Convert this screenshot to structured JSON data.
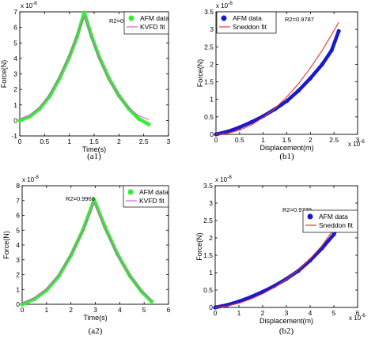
{
  "colors": {
    "afm_green": "#33ee33",
    "afm_blue": "#1a1acc",
    "kvfd_fit": "#dd55dd",
    "sneddon_fit": "#ee3333"
  },
  "chart_data": [
    {
      "type": "line",
      "caption": "(a1)",
      "xlabel": "Time(s)",
      "ylabel": "Force(N)",
      "y_exponent_label": "x 10",
      "y_exponent": "-8",
      "xlim": [
        0,
        3
      ],
      "ylim": [
        -1,
        7
      ],
      "xticks": [
        "0",
        "0.5",
        "1",
        "1.5",
        "2",
        "2.5",
        "3"
      ],
      "yticks": [
        "-1",
        "0",
        "1",
        "2",
        "3",
        "4",
        "5",
        "6",
        "7"
      ],
      "annotation": "R2=0.9918",
      "legend_position": "top-right",
      "series": [
        {
          "name": "AFM data",
          "style": "thick-marker",
          "color": "#33ee33",
          "points": [
            [
              0,
              0
            ],
            [
              0.2,
              0.25
            ],
            [
              0.4,
              0.75
            ],
            [
              0.6,
              1.55
            ],
            [
              0.8,
              2.7
            ],
            [
              1.0,
              4.1
            ],
            [
              1.15,
              5.35
            ],
            [
              1.3,
              6.95
            ],
            [
              1.45,
              5.4
            ],
            [
              1.6,
              4.1
            ],
            [
              1.8,
              2.7
            ],
            [
              2.0,
              1.6
            ],
            [
              2.2,
              0.75
            ],
            [
              2.4,
              0.1
            ],
            [
              2.6,
              -0.25
            ]
          ]
        },
        {
          "name": "KVFD fit",
          "style": "line",
          "color": "#dd55dd",
          "points": [
            [
              0,
              0.1
            ],
            [
              0.2,
              0.35
            ],
            [
              0.4,
              0.85
            ],
            [
              0.6,
              1.65
            ],
            [
              0.8,
              2.8
            ],
            [
              1.0,
              4.2
            ],
            [
              1.15,
              5.45
            ],
            [
              1.3,
              6.7
            ],
            [
              1.45,
              5.3
            ],
            [
              1.6,
              4.0
            ],
            [
              1.8,
              2.6
            ],
            [
              2.0,
              1.55
            ],
            [
              2.2,
              0.8
            ],
            [
              2.4,
              0.3
            ],
            [
              2.6,
              0.05
            ]
          ]
        }
      ]
    },
    {
      "type": "line",
      "caption": "(b1)",
      "xlabel": "Displacement(m)",
      "ylabel": "Force(N)",
      "y_exponent_label": "x 10",
      "y_exponent": "-8",
      "x_exponent_label": "x 10",
      "x_exponent": "-6",
      "xlim": [
        0,
        3
      ],
      "ylim": [
        0,
        3.5
      ],
      "xticks": [
        "0",
        "0.5",
        "1",
        "1.5",
        "2",
        "2.5",
        "3"
      ],
      "yticks": [
        "0",
        "0.5",
        "1",
        "1.5",
        "2",
        "2.5",
        "3",
        "3.5"
      ],
      "annotation": "R2=0.9787",
      "legend_position": "top-left",
      "series": [
        {
          "name": "AFM data",
          "style": "thick-marker",
          "color": "#1a1acc",
          "points": [
            [
              0,
              0
            ],
            [
              0.25,
              0.08
            ],
            [
              0.5,
              0.2
            ],
            [
              0.75,
              0.35
            ],
            [
              1.0,
              0.52
            ],
            [
              1.25,
              0.72
            ],
            [
              1.5,
              0.95
            ],
            [
              1.75,
              1.25
            ],
            [
              2.0,
              1.6
            ],
            [
              2.25,
              2.0
            ],
            [
              2.45,
              2.4
            ],
            [
              2.6,
              2.95
            ]
          ]
        },
        {
          "name": "Sneddon fit",
          "style": "line",
          "color": "#ee3333",
          "points": [
            [
              0,
              0
            ],
            [
              0.25,
              0.03
            ],
            [
              0.5,
              0.12
            ],
            [
              0.75,
              0.27
            ],
            [
              1.0,
              0.48
            ],
            [
              1.25,
              0.74
            ],
            [
              1.5,
              1.07
            ],
            [
              1.75,
              1.45
            ],
            [
              2.0,
              1.9
            ],
            [
              2.25,
              2.4
            ],
            [
              2.45,
              2.85
            ],
            [
              2.6,
              3.2
            ]
          ]
        }
      ]
    },
    {
      "type": "line",
      "caption": "(a2)",
      "xlabel": "Time(s)",
      "ylabel": "Force(N)",
      "y_exponent_label": "x 10",
      "y_exponent": "-8",
      "xlim": [
        0,
        6
      ],
      "ylim": [
        0,
        8
      ],
      "xticks": [
        "0",
        "1",
        "2",
        "3",
        "4",
        "5",
        "6"
      ],
      "yticks": [
        "0",
        "1",
        "2",
        "3",
        "4",
        "5",
        "6",
        "7",
        "8"
      ],
      "annotation": "R2=0.9968",
      "legend_position": "top-right",
      "series": [
        {
          "name": "AFM data",
          "style": "thick-marker",
          "color": "#33ee33",
          "points": [
            [
              0,
              0
            ],
            [
              0.5,
              0.35
            ],
            [
              1.0,
              0.95
            ],
            [
              1.5,
              1.9
            ],
            [
              2.0,
              3.3
            ],
            [
              2.5,
              5.05
            ],
            [
              2.95,
              7.05
            ],
            [
              3.4,
              5.2
            ],
            [
              3.9,
              3.4
            ],
            [
              4.4,
              1.95
            ],
            [
              4.9,
              0.85
            ],
            [
              5.3,
              0.2
            ]
          ]
        },
        {
          "name": "KVFD fit",
          "style": "line",
          "color": "#dd55dd",
          "points": [
            [
              0,
              0.1
            ],
            [
              0.5,
              0.45
            ],
            [
              1.0,
              1.05
            ],
            [
              1.5,
              2.0
            ],
            [
              2.0,
              3.35
            ],
            [
              2.5,
              5.0
            ],
            [
              2.95,
              6.85
            ],
            [
              3.4,
              5.1
            ],
            [
              3.9,
              3.35
            ],
            [
              4.4,
              1.95
            ],
            [
              4.9,
              0.9
            ],
            [
              5.3,
              0.3
            ]
          ]
        }
      ]
    },
    {
      "type": "line",
      "caption": "(b2)",
      "xlabel": "Displacement(m)",
      "ylabel": "Force(N)",
      "y_exponent_label": "x 10",
      "y_exponent": "-8",
      "x_exponent_label": "x 10",
      "x_exponent": "-6",
      "xlim": [
        0,
        6
      ],
      "ylim": [
        0,
        3.5
      ],
      "xticks": [
        "0",
        "1",
        "2",
        "3",
        "4",
        "5",
        "6"
      ],
      "yticks": [
        "0",
        "0.5",
        "1",
        "1.5",
        "2",
        "2.5",
        "3",
        "3.5"
      ],
      "annotation": "R2=0.9739",
      "legend_position": "top-right",
      "series": [
        {
          "name": "AFM data",
          "style": "thick-marker",
          "color": "#1a1acc",
          "points": [
            [
              0,
              0
            ],
            [
              0.5,
              0.07
            ],
            [
              1.0,
              0.17
            ],
            [
              1.5,
              0.3
            ],
            [
              2.0,
              0.45
            ],
            [
              2.5,
              0.62
            ],
            [
              3.0,
              0.82
            ],
            [
              3.5,
              1.05
            ],
            [
              4.0,
              1.35
            ],
            [
              4.5,
              1.7
            ],
            [
              5.0,
              2.1
            ],
            [
              5.2,
              2.4
            ]
          ]
        },
        {
          "name": "Sneddon fit",
          "style": "line",
          "color": "#ee3333",
          "points": [
            [
              0,
              0
            ],
            [
              0.5,
              0.04
            ],
            [
              1.0,
              0.12
            ],
            [
              1.5,
              0.24
            ],
            [
              2.0,
              0.39
            ],
            [
              2.5,
              0.58
            ],
            [
              3.0,
              0.81
            ],
            [
              3.5,
              1.08
            ],
            [
              4.0,
              1.4
            ],
            [
              4.5,
              1.78
            ],
            [
              5.0,
              2.25
            ],
            [
              5.2,
              2.55
            ]
          ]
        }
      ]
    }
  ]
}
